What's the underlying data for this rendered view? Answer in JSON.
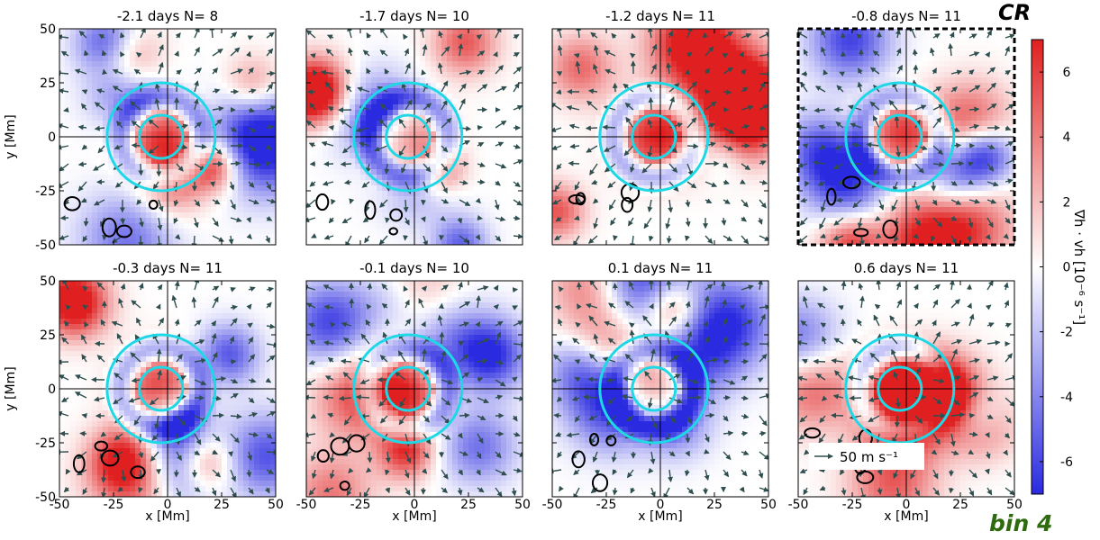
{
  "figure": {
    "corner_label": "CR",
    "bin_label": "bin 4",
    "bin_label_color": "#2e6b0f",
    "colorbar_label": "∇h · vh [10⁻⁶ s⁻¹]",
    "velocity_key_label": "50 m s⁻¹",
    "highlighted_panel": 3
  },
  "chart_data": {
    "type": "heatmap",
    "xlabel": "x [Mm]",
    "ylabel": "y [Mm]",
    "xlim": [
      -50,
      50
    ],
    "ylim": [
      -50,
      50
    ],
    "x_ticks": [
      -50,
      -25,
      0,
      25,
      50
    ],
    "y_ticks": [
      -50,
      -25,
      0,
      25,
      50
    ],
    "colorbar": {
      "range": [
        -7,
        7
      ],
      "ticks": [
        -6,
        -4,
        -2,
        0,
        2,
        4,
        6
      ],
      "colors": {
        "negative": "#2a2ae0",
        "zero": "#ffffff",
        "positive": "#e02020"
      }
    },
    "circles": {
      "color": "#1fd8e6",
      "center": [
        -3,
        0
      ],
      "radii": [
        10,
        25
      ]
    },
    "crosshair": [
      0,
      0
    ],
    "panels": [
      {
        "time": "-2.1 days",
        "n": "N=  8"
      },
      {
        "time": "-1.7 days",
        "n": "N= 10"
      },
      {
        "time": "-1.2 days",
        "n": "N= 11"
      },
      {
        "time": "-0.8 days",
        "n": "N= 11"
      },
      {
        "time": "-0.3 days",
        "n": "N= 11"
      },
      {
        "time": "-0.1 days",
        "n": "N= 10"
      },
      {
        "time": "0.1 days",
        "n": "N= 11"
      },
      {
        "time": "0.6 days",
        "n": "N= 11"
      }
    ]
  }
}
